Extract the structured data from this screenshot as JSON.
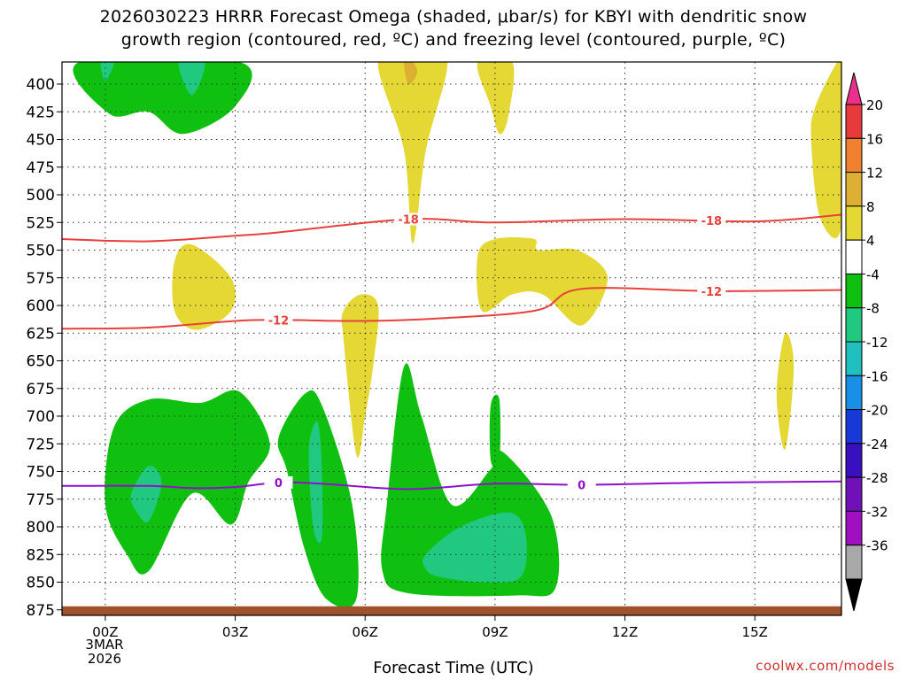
{
  "title_line1": "2026030223 HRRR Forecast Omega (shaded, μbar/s) for KBYI with dendritic snow",
  "title_line2": "growth region (contoured, red, ºC) and freezing level (contoured, purple, ºC)",
  "xaxis_label": "Forecast Time (UTC)",
  "date_label": [
    "3MAR",
    "2026"
  ],
  "credit": "coolwx.com/models",
  "chart_data": {
    "type": "heatmap",
    "title": "2026030223 HRRR Forecast Omega (shaded, μbar/s) for KBYI with dendritic snow growth region (contoured, red, ºC) and freezing level (contoured, purple, ºC)",
    "xlabel": "Forecast Time (UTC)",
    "x_ticks": [
      {
        "hours": 0,
        "label": "00Z"
      },
      {
        "hours": 3,
        "label": "03Z"
      },
      {
        "hours": 6,
        "label": "06Z"
      },
      {
        "hours": 9,
        "label": "09Z"
      },
      {
        "hours": 12,
        "label": "12Z"
      },
      {
        "hours": 15,
        "label": "15Z"
      }
    ],
    "xlim": [
      -1,
      17
    ],
    "y_ticks": [
      400,
      425,
      450,
      475,
      500,
      525,
      550,
      575,
      600,
      625,
      650,
      675,
      700,
      725,
      750,
      775,
      800,
      825,
      850,
      875
    ],
    "ylim": [
      380,
      880
    ],
    "grid": true,
    "colorbar": {
      "labels": [
        "20",
        "16",
        "12",
        "8",
        "4",
        "-4",
        "-8",
        "-12",
        "-16",
        "-20",
        "-24",
        "-28",
        "-32",
        "-36"
      ],
      "colors": [
        "#e8308c",
        "#e83a3a",
        "#ee8030",
        "#ddb033",
        "#e5d835",
        "#ffffff",
        "#10c010",
        "#20c880",
        "#20c0c0",
        "#1890e8",
        "#1838d8",
        "#3810c0",
        "#7010b8",
        "#a010c0",
        "#a8a8a8",
        "#000000"
      ]
    },
    "contours": [
      {
        "name": "-18",
        "color": "#e8403a",
        "x": [
          -1,
          1,
          3,
          4,
          7,
          9,
          12,
          15,
          17
        ],
        "y": [
          540,
          542,
          537,
          534,
          522,
          525,
          522,
          524,
          518
        ]
      },
      {
        "name": "-12",
        "color": "#e8403a",
        "x": [
          -1,
          1,
          3,
          4,
          6,
          8,
          10,
          11,
          14,
          17
        ],
        "y": [
          621,
          620,
          614,
          613,
          614,
          611,
          604,
          585,
          587,
          586
        ]
      },
      {
        "name": "0",
        "color": "#9010c8",
        "x": [
          -1,
          1,
          2,
          3,
          4,
          5,
          7,
          9,
          11,
          14,
          17
        ],
        "y": [
          763,
          763,
          765,
          764,
          760,
          761,
          766,
          761,
          762,
          760,
          759
        ]
      }
    ],
    "omega_regions": [
      {
        "value": "4 to 8",
        "color": "#e5d835",
        "x": [
          6.3,
          7.2,
          7.9,
          7.4,
          7.1,
          6.9
        ],
        "y": [
          380,
          380,
          380,
          460,
          544,
          460
        ]
      },
      {
        "value": "8 to 12",
        "color": "#ddb033",
        "x": [
          6.9,
          7.1,
          7.2,
          7.0
        ],
        "y": [
          380,
          380,
          390,
          400
        ]
      },
      {
        "value": "4 to 8",
        "color": "#e5d835",
        "x": [
          8.6,
          9.4,
          9.3,
          9.1,
          8.9
        ],
        "y": [
          380,
          380,
          430,
          445,
          420
        ]
      },
      {
        "value": "4 to 8",
        "color": "#e5d835",
        "x": [
          1.6,
          2.0,
          2.9,
          2.9,
          2.1,
          1.6
        ],
        "y": [
          560,
          545,
          575,
          605,
          622,
          605
        ]
      },
      {
        "value": "4 to 8",
        "color": "#e5d835",
        "x": [
          5.5,
          5.9,
          6.3,
          6.2,
          6.0,
          5.8,
          5.5
        ],
        "y": [
          605,
          590,
          600,
          650,
          700,
          735,
          630
        ]
      },
      {
        "value": "4 to 8",
        "color": "#e5d835",
        "x": [
          8.6,
          9.0,
          9.9,
          10.0,
          10.9,
          11.6,
          11.0,
          10.1,
          9.4,
          8.7
        ],
        "y": [
          555,
          540,
          540,
          550,
          550,
          575,
          618,
          590,
          590,
          605
        ]
      },
      {
        "value": "4 to 8",
        "color": "#e5d835",
        "x": [
          15.7,
          15.9,
          15.7,
          15.5
        ],
        "y": [
          625,
          655,
          730,
          680
        ]
      },
      {
        "value": "4 to 8",
        "color": "#e5d835",
        "x": [
          16.9,
          17.0,
          17.0,
          16.5,
          16.3,
          16.4
        ],
        "y": [
          380,
          380,
          528,
          520,
          450,
          420
        ]
      },
      {
        "value": "-4 to -8",
        "color": "#10c010",
        "x": [
          -0.6,
          3.1,
          3.0,
          1.8,
          1.0,
          0.1
        ],
        "y": [
          380,
          380,
          420,
          445,
          425,
          427
        ]
      },
      {
        "value": "-8 to -12",
        "color": "#20c880",
        "x": [
          -0.1,
          0.2,
          0.0
        ],
        "y": [
          380,
          380,
          397
        ]
      },
      {
        "value": "-8 to -12",
        "color": "#20c880",
        "x": [
          1.7,
          2.3,
          2.0
        ],
        "y": [
          380,
          380,
          410
        ]
      },
      {
        "value": "-4 to -8",
        "color": "#10c010",
        "x": [
          0.2,
          1.0,
          2.2,
          3.1,
          3.8,
          3.3,
          2.9,
          2.0,
          1.0,
          0.5,
          0.0
        ],
        "y": [
          710,
          685,
          688,
          678,
          725,
          760,
          798,
          770,
          840,
          825,
          780
        ]
      },
      {
        "value": "-8 to -12",
        "color": "#20c880",
        "x": [
          0.6,
          1.0,
          1.3,
          1.0,
          0.7
        ],
        "y": [
          770,
          745,
          760,
          795,
          785
        ]
      },
      {
        "value": "-4 to -8",
        "color": "#10c010",
        "x": [
          4.0,
          4.6,
          5.0,
          5.7,
          5.8,
          5.1,
          4.6,
          4.2
        ],
        "y": [
          720,
          680,
          690,
          780,
          865,
          865,
          820,
          750
        ]
      },
      {
        "value": "-8 to -12",
        "color": "#20c880",
        "x": [
          4.7,
          4.9,
          5.0,
          5.0,
          4.8
        ],
        "y": [
          730,
          705,
          745,
          810,
          800
        ]
      },
      {
        "value": "-4 to -8",
        "color": "#10c010",
        "x": [
          6.5,
          6.9,
          7.3,
          8.0,
          8.9,
          9.2,
          10.3,
          10.4,
          9.5,
          7.0,
          6.4
        ],
        "y": [
          780,
          655,
          700,
          780,
          748,
          733,
          790,
          855,
          862,
          860,
          840
        ]
      },
      {
        "value": "-8 to -12",
        "color": "#20c880",
        "x": [
          7.4,
          8.2,
          9.3,
          9.7,
          9.6,
          8.7,
          7.7,
          7.4
        ],
        "y": [
          825,
          800,
          787,
          805,
          845,
          850,
          845,
          838
        ]
      },
      {
        "value": "-4 to -8",
        "color": "#10c010",
        "x": [
          8.9,
          9.1,
          9.1,
          8.9
        ],
        "y": [
          690,
          685,
          740,
          740
        ]
      }
    ],
    "terrain": {
      "color": "#a0522d",
      "level": 875
    }
  }
}
